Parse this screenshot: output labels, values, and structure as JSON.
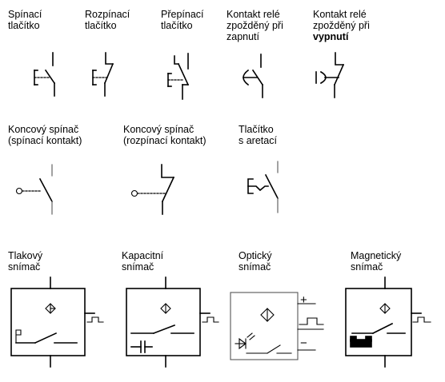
{
  "row1": [
    {
      "line1": "Spínací",
      "line2": "tlačítko"
    },
    {
      "line1": "Rozpínací",
      "line2": "tlačítko"
    },
    {
      "line1": "Přepínací",
      "line2": "tlačítko"
    },
    {
      "line1": "Kontakt relé",
      "line2": "zpožděný při",
      "line3": "zapnutí"
    },
    {
      "line1": "Kontakt relé",
      "line2": "zpožděný při",
      "line3": "vypnutí"
    }
  ],
  "row2": [
    {
      "line1": "Koncový spínač",
      "line2": "(spínací kontakt)"
    },
    {
      "line1": "Koncový spínač",
      "line2": "(rozpínací kontakt)"
    },
    {
      "line1": "Tlačítko",
      "line2": "s aretací"
    }
  ],
  "row3": [
    {
      "line1": "Tlakový",
      "line2": "snímač"
    },
    {
      "line1": "Kapacitní",
      "line2": "snímač"
    },
    {
      "line1": "Optický",
      "line2": "snímač"
    },
    {
      "line1": "Magnetický",
      "line2": "snímač"
    }
  ],
  "optical": {
    "plus": "+",
    "minus": "−"
  },
  "icons": [
    "push-button-no-icon",
    "push-button-nc-icon",
    "push-button-changeover-icon",
    "relay-on-delay-icon",
    "relay-off-delay-icon",
    "limit-switch-no-icon",
    "limit-switch-nc-icon",
    "latching-button-icon",
    "pressure-sensor-icon",
    "capacitive-sensor-icon",
    "optical-sensor-icon",
    "magnetic-sensor-icon"
  ]
}
